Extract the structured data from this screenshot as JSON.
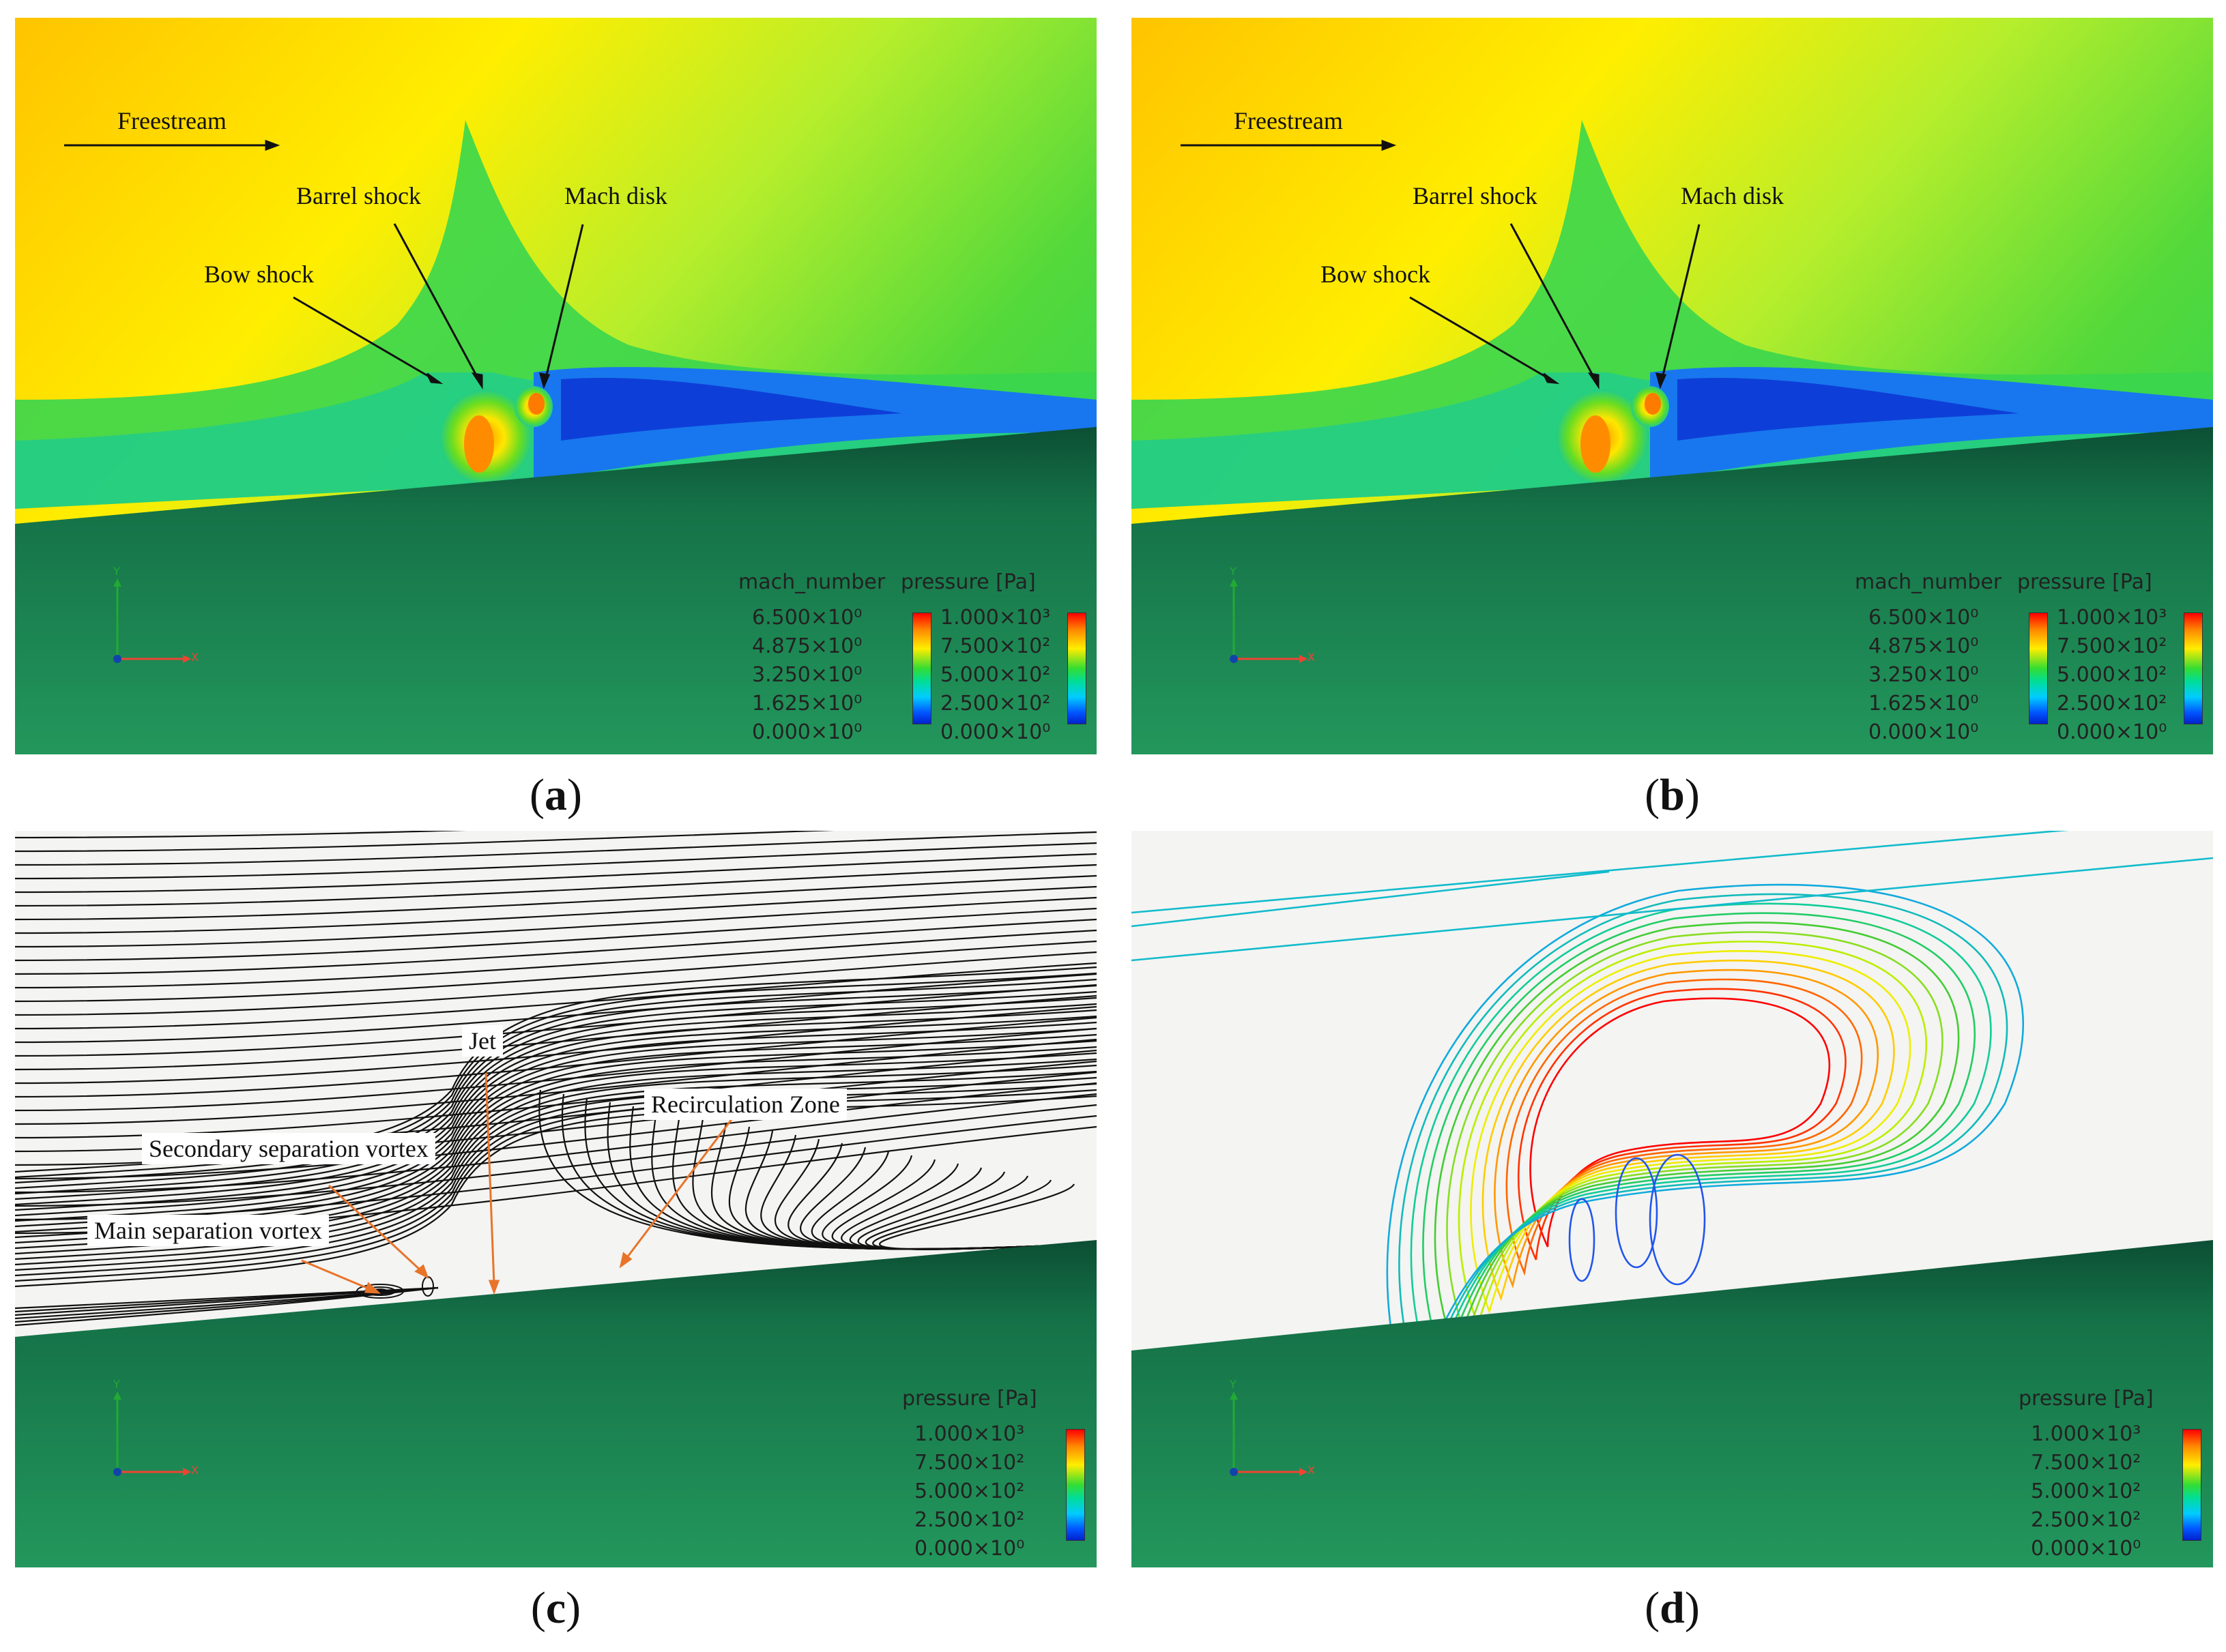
{
  "panels": {
    "a": {
      "caption": "a",
      "freestream": "Freestream",
      "barrel_shock": "Barrel shock",
      "mach_disk": "Mach disk",
      "bow_shock": "Bow shock",
      "legend_mach_title": "mach_number",
      "legend_pressure_title": "pressure [Pa]",
      "mach_ticks": [
        "6.500×10⁰",
        "4.875×10⁰",
        "3.250×10⁰",
        "1.625×10⁰",
        "0.000×10⁰"
      ],
      "pressure_ticks": [
        "1.000×10³",
        "7.500×10²",
        "5.000×10²",
        "2.500×10²",
        "0.000×10⁰"
      ]
    },
    "b": {
      "caption": "b",
      "freestream": "Freestream",
      "barrel_shock": "Barrel shock",
      "mach_disk": "Mach disk",
      "bow_shock": "Bow shock",
      "legend_mach_title": "mach_number",
      "legend_pressure_title": "pressure [Pa]",
      "mach_ticks": [
        "6.500×10⁰",
        "4.875×10⁰",
        "3.250×10⁰",
        "1.625×10⁰",
        "0.000×10⁰"
      ],
      "pressure_ticks": [
        "1.000×10³",
        "7.500×10²",
        "5.000×10²",
        "2.500×10²",
        "0.000×10⁰"
      ]
    },
    "c": {
      "caption": "c",
      "jet": "Jet",
      "recirculation": "Recirculation Zone",
      "secondary_vortex": "Secondary separation vortex",
      "main_vortex": "Main separation vortex",
      "legend_pressure_title": "pressure [Pa]",
      "pressure_ticks": [
        "1.000×10³",
        "7.500×10²",
        "5.000×10²",
        "2.500×10²",
        "0.000×10⁰"
      ]
    },
    "d": {
      "caption": "d",
      "legend_pressure_title": "pressure [Pa]",
      "pressure_ticks": [
        "1.000×10³",
        "7.500×10²",
        "5.000×10²",
        "2.500×10²",
        "0.000×10⁰"
      ]
    }
  },
  "axis_labels": {
    "x": "X",
    "y": "Y"
  },
  "colors": {
    "wall": "#1f8a55",
    "wall_dark": "#0f5a3a",
    "annotation_arrow": "#111111",
    "leader_orange": "#e8742a"
  }
}
